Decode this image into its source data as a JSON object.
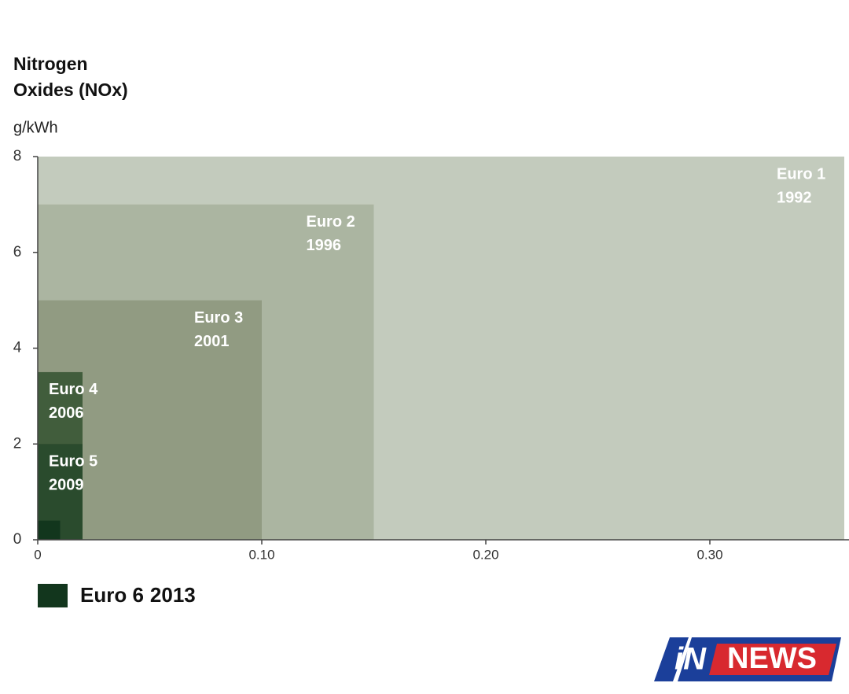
{
  "chart_data": {
    "type": "nested-rect",
    "title_lines": [
      "Nitrogen",
      "Oxides (NOx)"
    ],
    "y_unit": "g/kWh",
    "xlim": [
      0,
      0.36
    ],
    "ylim": [
      0,
      8
    ],
    "xticks": [
      0,
      {
        "value": 0.1,
        "label": "0.10"
      },
      {
        "value": 0.2,
        "label": "0.20"
      },
      {
        "value": 0.3,
        "label": "0.30"
      }
    ],
    "yticks": [
      0,
      2,
      4,
      6,
      8
    ],
    "series": [
      {
        "name": "Euro 1",
        "year": "1992",
        "x": 0.36,
        "y": 8,
        "color": "#c3cbbd",
        "label_position": "inside"
      },
      {
        "name": "Euro 2",
        "year": "1996",
        "x": 0.15,
        "y": 7,
        "color": "#abb5a1",
        "label_position": "inside"
      },
      {
        "name": "Euro 3",
        "year": "2001",
        "x": 0.1,
        "y": 5,
        "color": "#919b82",
        "label_position": "inside"
      },
      {
        "name": "Euro 4",
        "year": "2006",
        "x": 0.02,
        "y": 3.5,
        "color": "#415d3c",
        "label_position": "inside"
      },
      {
        "name": "Euro 5",
        "year": "2009",
        "x": 0.02,
        "y": 2,
        "color": "#2a4b2d",
        "label_position": "inside"
      },
      {
        "name": "Euro 6",
        "year": "2013",
        "x": 0.01,
        "y": 0.4,
        "color": "#12361d",
        "label_position": "legend"
      }
    ]
  },
  "logo": {
    "mark": "iN",
    "word": "NEWS"
  }
}
